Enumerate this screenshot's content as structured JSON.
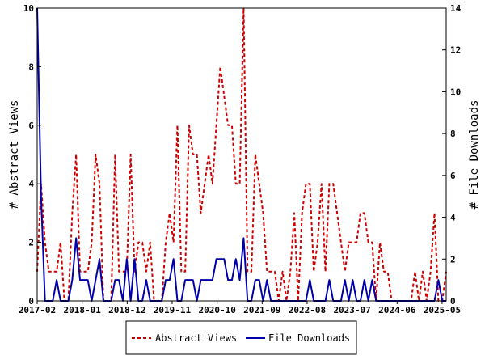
{
  "chart_data": {
    "type": "line",
    "xlabel": "",
    "ylabel_left": "# Abstract Views",
    "ylabel_right": "# File Downloads",
    "ylim_left": [
      0,
      10
    ],
    "ylim_right": [
      0,
      14
    ],
    "yticks_left": [
      "0",
      "2",
      "4",
      "6",
      "8",
      "10"
    ],
    "yticks_right": [
      "0",
      "2",
      "4",
      "6",
      "8",
      "10",
      "12",
      "14"
    ],
    "x_tick_labels": [
      "2017-02",
      "2018-01",
      "2018-12",
      "2019-11",
      "2020-10",
      "2021-09",
      "2022-08",
      "2023-07",
      "2024-06",
      "2025-05"
    ],
    "x_start": "2017-02",
    "x_end": "2025-06",
    "legend_position": "bottom-center",
    "series": [
      {
        "name": "Abstract Views",
        "axis": "left",
        "color": "#cc0000",
        "dash": "dashed",
        "values": [
          1,
          4,
          2,
          1,
          1,
          1,
          2,
          0,
          0,
          3,
          5,
          1,
          1,
          1,
          2,
          5,
          4,
          0,
          0,
          0,
          5,
          1,
          1,
          1,
          5,
          1,
          2,
          2,
          1,
          2,
          0,
          0,
          0,
          2,
          3,
          2,
          6,
          1,
          1,
          6,
          5,
          5,
          3,
          4,
          5,
          4,
          6,
          8,
          7,
          6,
          6,
          4,
          4,
          10,
          1,
          1,
          5,
          4,
          3,
          1,
          1,
          1,
          0,
          1,
          0,
          1,
          3,
          0,
          3,
          4,
          4,
          1,
          2,
          4,
          1,
          4,
          4,
          3,
          2,
          1,
          2,
          2,
          2,
          3,
          3,
          2,
          2,
          0,
          2,
          1,
          1,
          0,
          0,
          0,
          0,
          0,
          0,
          1,
          0,
          1,
          0,
          1,
          3,
          0,
          0,
          1
        ]
      },
      {
        "name": "File Downloads",
        "axis": "right",
        "color": "#0000aa",
        "dash": "solid",
        "values": [
          14,
          5,
          0,
          0,
          0,
          1,
          0,
          0,
          0,
          1,
          3,
          1,
          1,
          1,
          0,
          1,
          2,
          0,
          0,
          0,
          1,
          1,
          0,
          2,
          0,
          2,
          0,
          0,
          1,
          0,
          0,
          0,
          0,
          1,
          1,
          2,
          0,
          0,
          1,
          1,
          1,
          0,
          1,
          1,
          1,
          1,
          2,
          2,
          2,
          1,
          1,
          2,
          1,
          3,
          0,
          0,
          1,
          1,
          0,
          1,
          0,
          0,
          0,
          0,
          0,
          0,
          0,
          0,
          0,
          0,
          1,
          0,
          0,
          0,
          0,
          1,
          0,
          0,
          0,
          1,
          0,
          1,
          0,
          0,
          1,
          0,
          1,
          0,
          0,
          0,
          0,
          0,
          0,
          0,
          0,
          0,
          0,
          0,
          0,
          0,
          0,
          0,
          0,
          1,
          0,
          0
        ]
      }
    ]
  }
}
